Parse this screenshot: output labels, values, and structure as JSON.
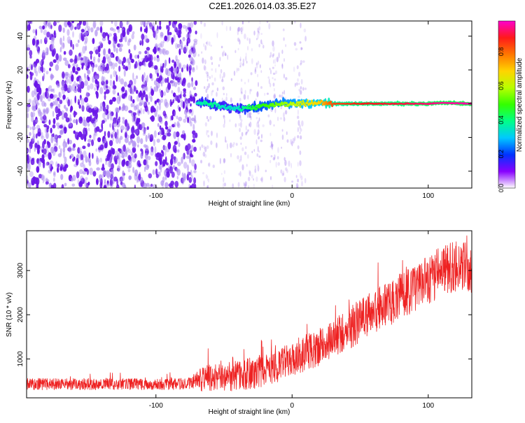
{
  "title": "C2E1.2026.014.03.35.E27",
  "colors": {
    "sparse": "#a985f0",
    "dense": "#6a16e8",
    "snr_line": "#ee2222",
    "axis": "#000000"
  },
  "colormap_stops": [
    "#ffffff",
    "#8800ff",
    "#0033ff",
    "#00c8ff",
    "#00ff88",
    "#33ff00",
    "#b8ff00",
    "#ffd400",
    "#ff7700",
    "#ff1a1a",
    "#ff00cc"
  ],
  "chart_data": [
    {
      "type": "heatmap",
      "title": "C2E1.2026.014.03.35.E27",
      "xlabel": "Height of straight line (km)",
      "ylabel": "Frequency (Hz)",
      "xlim": [
        -195,
        132
      ],
      "ylim": [
        -50,
        49
      ],
      "xticks": [
        -100,
        0,
        100
      ],
      "yticks": [
        -40,
        -20,
        0,
        20,
        40
      ],
      "colorbar": {
        "label": "Normalized spectral amplitude",
        "range": [
          0,
          0.98
        ],
        "ticks": [
          0.0,
          0.2,
          0.4,
          0.6,
          0.8
        ],
        "tick_labels": [
          "0.0",
          "0.2",
          "0.4",
          "0.6",
          "0.8"
        ]
      },
      "noise_region": {
        "x_from": -195,
        "x_to": -70,
        "freq_range": [
          -50,
          49
        ],
        "typical_amplitude": 0.1
      },
      "transition_region": {
        "x_from": -70,
        "x_to": 10,
        "freq_range": [
          -50,
          49
        ],
        "typical_amplitude": 0.03
      },
      "signal_ridge": {
        "x": [
          -70,
          -60,
          -50,
          -40,
          -30,
          -20,
          -10,
          0,
          10,
          20,
          30,
          50,
          80,
          100,
          110,
          132
        ],
        "frequency": [
          0.5,
          0.0,
          -2.0,
          -3.0,
          -2.5,
          -1.0,
          0.0,
          0.0,
          0.0,
          0.5,
          0.0,
          0.0,
          0.0,
          0.0,
          0.5,
          0.0
        ],
        "amplitude": [
          0.35,
          0.4,
          0.35,
          0.35,
          0.45,
          0.5,
          0.55,
          0.6,
          0.65,
          0.7,
          0.85,
          0.9,
          0.92,
          0.95,
          0.97,
          0.98
        ]
      }
    },
    {
      "type": "line",
      "xlabel": "Height of straight line (km)",
      "ylabel": "SNR (10 * v/v)",
      "xlim": [
        -195,
        132
      ],
      "ylim": [
        120,
        3900
      ],
      "xticks": [
        -100,
        0,
        100
      ],
      "yticks": [
        1000,
        2000,
        3000
      ],
      "series": [
        {
          "name": "SNR",
          "x": [
            -195,
            -180,
            -160,
            -140,
            -120,
            -100,
            -85,
            -75,
            -66,
            -60,
            -50,
            -40,
            -30,
            -20,
            -10,
            0,
            10,
            20,
            30,
            40,
            50,
            60,
            70,
            80,
            90,
            100,
            110,
            120,
            125,
            132
          ],
          "mean": [
            430,
            430,
            430,
            430,
            430,
            430,
            430,
            440,
            520,
            560,
            600,
            620,
            670,
            760,
            860,
            960,
            1120,
            1270,
            1450,
            1640,
            1860,
            2060,
            2230,
            2440,
            2600,
            2790,
            3000,
            3120,
            3180,
            2960
          ],
          "spread": [
            130,
            130,
            130,
            130,
            130,
            130,
            130,
            140,
            300,
            320,
            330,
            340,
            360,
            380,
            400,
            380,
            400,
            420,
            440,
            460,
            500,
            500,
            520,
            520,
            550,
            550,
            580,
            600,
            650,
            500
          ]
        }
      ]
    }
  ]
}
